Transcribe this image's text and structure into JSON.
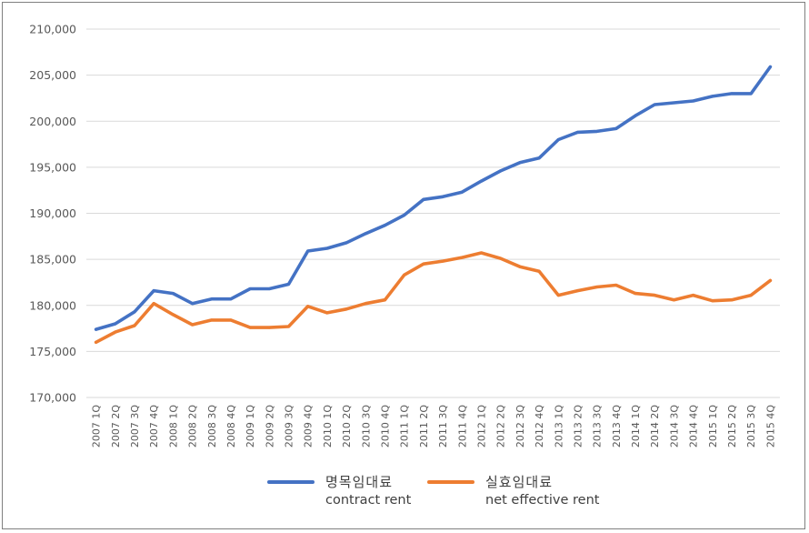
{
  "chart_data": {
    "type": "line",
    "categories": [
      "2007 1Q",
      "2007 2Q",
      "2007 3Q",
      "2007 4Q",
      "2008 1Q",
      "2008 2Q",
      "2008 3Q",
      "2008 4Q",
      "2009 1Q",
      "2009 2Q",
      "2009 3Q",
      "2009 4Q",
      "2010 1Q",
      "2010 2Q",
      "2010 3Q",
      "2010 4Q",
      "2011 1Q",
      "2011 2Q",
      "2011 3Q",
      "2011 4Q",
      "2012 1Q",
      "2012 2Q",
      "2012 3Q",
      "2012 4Q",
      "2013 1Q",
      "2013 2Q",
      "2013 3Q",
      "2013 4Q",
      "2014 1Q",
      "2014 2Q",
      "2014 3Q",
      "2014 4Q",
      "2015 1Q",
      "2015 2Q",
      "2015 3Q",
      "2015 4Q"
    ],
    "series": [
      {
        "name": "명목임대료",
        "name_en": "contract rent",
        "color": "#4472C4",
        "values": [
          177400,
          178000,
          179300,
          181600,
          181300,
          180200,
          180700,
          180700,
          181800,
          181800,
          182300,
          185900,
          186200,
          186800,
          187800,
          188700,
          189800,
          191500,
          191800,
          192300,
          193500,
          194600,
          195500,
          196000,
          198000,
          198800,
          198900,
          199200,
          200600,
          201800,
          202000,
          202200,
          202700,
          203000,
          203000,
          205900
        ]
      },
      {
        "name": "실효임대료",
        "name_en": "net effective rent",
        "color": "#ED7D31",
        "values": [
          176000,
          177100,
          177800,
          180200,
          179000,
          177900,
          178400,
          178400,
          177600,
          177600,
          177700,
          179900,
          179200,
          179600,
          180200,
          180600,
          183300,
          184500,
          184800,
          185200,
          185700,
          185100,
          184200,
          183700,
          181100,
          181600,
          182000,
          182200,
          181300,
          181100,
          180600,
          181100,
          180500,
          180600,
          181100,
          182700
        ]
      }
    ],
    "ylim": [
      170000,
      210000
    ],
    "yticks": [
      "170,000",
      "175,000",
      "180,000",
      "185,000",
      "190,000",
      "195,000",
      "200,000",
      "205,000",
      "210,000"
    ],
    "grid": true,
    "legend_position": "bottom",
    "title": "",
    "xlabel": "",
    "ylabel": ""
  }
}
